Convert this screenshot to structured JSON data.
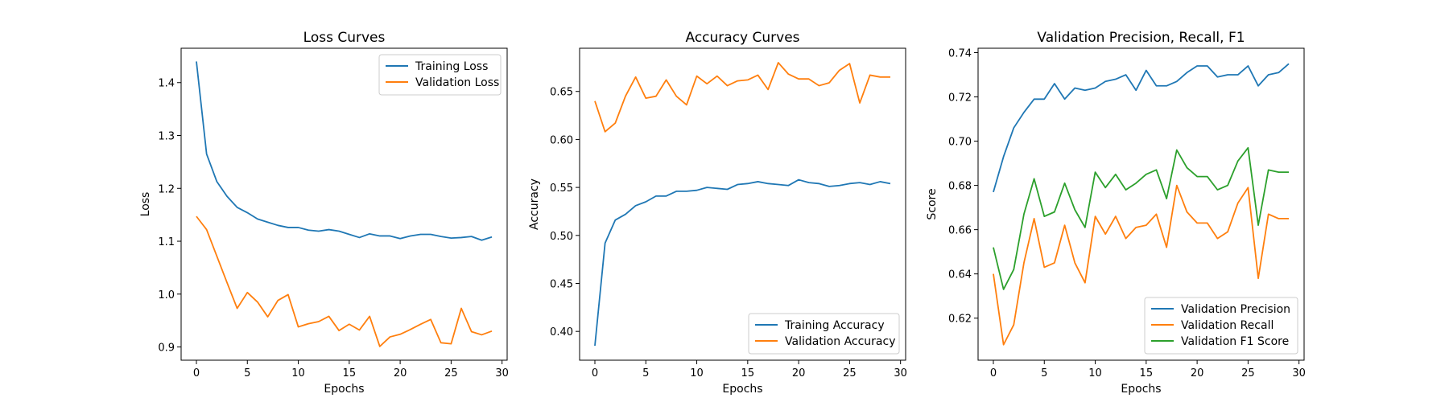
{
  "chart_data": [
    {
      "type": "line",
      "title": "Loss Curves",
      "xlabel": "Epochs",
      "ylabel": "Loss",
      "xlim": [
        -1.5,
        30.5
      ],
      "ylim": [
        0.875,
        1.465
      ],
      "xticks": [
        0,
        5,
        10,
        15,
        20,
        25,
        30
      ],
      "yticks": [
        0.9,
        1.0,
        1.1,
        1.2,
        1.3,
        1.4
      ],
      "tick_decimals": 1,
      "legend_position": "top-right",
      "x": [
        0,
        1,
        2,
        3,
        4,
        5,
        6,
        7,
        8,
        9,
        10,
        11,
        12,
        13,
        14,
        15,
        16,
        17,
        18,
        19,
        20,
        21,
        22,
        23,
        24,
        25,
        26,
        27,
        28,
        29
      ],
      "series": [
        {
          "name": "Training Loss",
          "color": "#1f77b4",
          "values": [
            1.44,
            1.265,
            1.213,
            1.185,
            1.164,
            1.154,
            1.142,
            1.136,
            1.13,
            1.126,
            1.126,
            1.121,
            1.119,
            1.122,
            1.119,
            1.113,
            1.107,
            1.114,
            1.11,
            1.11,
            1.105,
            1.11,
            1.113,
            1.113,
            1.109,
            1.106,
            1.107,
            1.109,
            1.102,
            1.108
          ]
        },
        {
          "name": "Validation Loss",
          "color": "#ff7f0e",
          "values": [
            1.147,
            1.122,
            1.072,
            1.022,
            0.973,
            1.003,
            0.985,
            0.957,
            0.988,
            0.999,
            0.938,
            0.944,
            0.948,
            0.958,
            0.931,
            0.943,
            0.932,
            0.958,
            0.901,
            0.919,
            0.924,
            0.933,
            0.943,
            0.952,
            0.908,
            0.906,
            0.973,
            0.929,
            0.923,
            0.93
          ]
        }
      ]
    },
    {
      "type": "line",
      "title": "Accuracy Curves",
      "xlabel": "Epochs",
      "ylabel": "Accuracy",
      "xlim": [
        -1.5,
        30.5
      ],
      "ylim": [
        0.37,
        0.695
      ],
      "xticks": [
        0,
        5,
        10,
        15,
        20,
        25,
        30
      ],
      "yticks": [
        0.4,
        0.45,
        0.5,
        0.55,
        0.6,
        0.65
      ],
      "tick_decimals": 2,
      "legend_position": "bottom-right",
      "x": [
        0,
        1,
        2,
        3,
        4,
        5,
        6,
        7,
        8,
        9,
        10,
        11,
        12,
        13,
        14,
        15,
        16,
        17,
        18,
        19,
        20,
        21,
        22,
        23,
        24,
        25,
        26,
        27,
        28,
        29
      ],
      "series": [
        {
          "name": "Training Accuracy",
          "color": "#1f77b4",
          "values": [
            0.385,
            0.492,
            0.516,
            0.522,
            0.531,
            0.535,
            0.541,
            0.541,
            0.546,
            0.546,
            0.547,
            0.55,
            0.549,
            0.548,
            0.553,
            0.554,
            0.556,
            0.554,
            0.553,
            0.552,
            0.558,
            0.555,
            0.554,
            0.551,
            0.552,
            0.554,
            0.555,
            0.553,
            0.556,
            0.554
          ]
        },
        {
          "name": "Validation Accuracy",
          "color": "#ff7f0e",
          "values": [
            0.64,
            0.608,
            0.617,
            0.645,
            0.665,
            0.643,
            0.645,
            0.662,
            0.645,
            0.636,
            0.666,
            0.658,
            0.666,
            0.656,
            0.661,
            0.662,
            0.667,
            0.652,
            0.68,
            0.668,
            0.663,
            0.663,
            0.656,
            0.659,
            0.672,
            0.679,
            0.638,
            0.667,
            0.665,
            0.665
          ]
        }
      ]
    },
    {
      "type": "line",
      "title": "Validation Precision, Recall, F1",
      "xlabel": "Epochs",
      "ylabel": "Score",
      "xlim": [
        -1.5,
        30.5
      ],
      "ylim": [
        0.601,
        0.742
      ],
      "xticks": [
        0,
        5,
        10,
        15,
        20,
        25,
        30
      ],
      "yticks": [
        0.62,
        0.64,
        0.66,
        0.68,
        0.7,
        0.72,
        0.74
      ],
      "tick_decimals": 2,
      "legend_position": "bottom-right",
      "x": [
        0,
        1,
        2,
        3,
        4,
        5,
        6,
        7,
        8,
        9,
        10,
        11,
        12,
        13,
        14,
        15,
        16,
        17,
        18,
        19,
        20,
        21,
        22,
        23,
        24,
        25,
        26,
        27,
        28,
        29
      ],
      "series": [
        {
          "name": "Validation Precision",
          "color": "#1f77b4",
          "values": [
            0.677,
            0.693,
            0.706,
            0.713,
            0.719,
            0.719,
            0.726,
            0.719,
            0.724,
            0.723,
            0.724,
            0.727,
            0.728,
            0.73,
            0.723,
            0.732,
            0.725,
            0.725,
            0.727,
            0.731,
            0.734,
            0.734,
            0.729,
            0.73,
            0.73,
            0.734,
            0.725,
            0.73,
            0.731,
            0.735
          ]
        },
        {
          "name": "Validation Recall",
          "color": "#ff7f0e",
          "values": [
            0.64,
            0.608,
            0.617,
            0.645,
            0.665,
            0.643,
            0.645,
            0.662,
            0.645,
            0.636,
            0.666,
            0.658,
            0.666,
            0.656,
            0.661,
            0.662,
            0.667,
            0.652,
            0.68,
            0.668,
            0.663,
            0.663,
            0.656,
            0.659,
            0.672,
            0.679,
            0.638,
            0.667,
            0.665,
            0.665
          ]
        },
        {
          "name": "Validation F1 Score",
          "color": "#2ca02c",
          "values": [
            0.652,
            0.633,
            0.642,
            0.667,
            0.683,
            0.666,
            0.668,
            0.681,
            0.669,
            0.661,
            0.686,
            0.679,
            0.685,
            0.678,
            0.681,
            0.685,
            0.687,
            0.674,
            0.696,
            0.688,
            0.684,
            0.684,
            0.678,
            0.68,
            0.691,
            0.697,
            0.662,
            0.687,
            0.686,
            0.686
          ]
        }
      ]
    }
  ]
}
